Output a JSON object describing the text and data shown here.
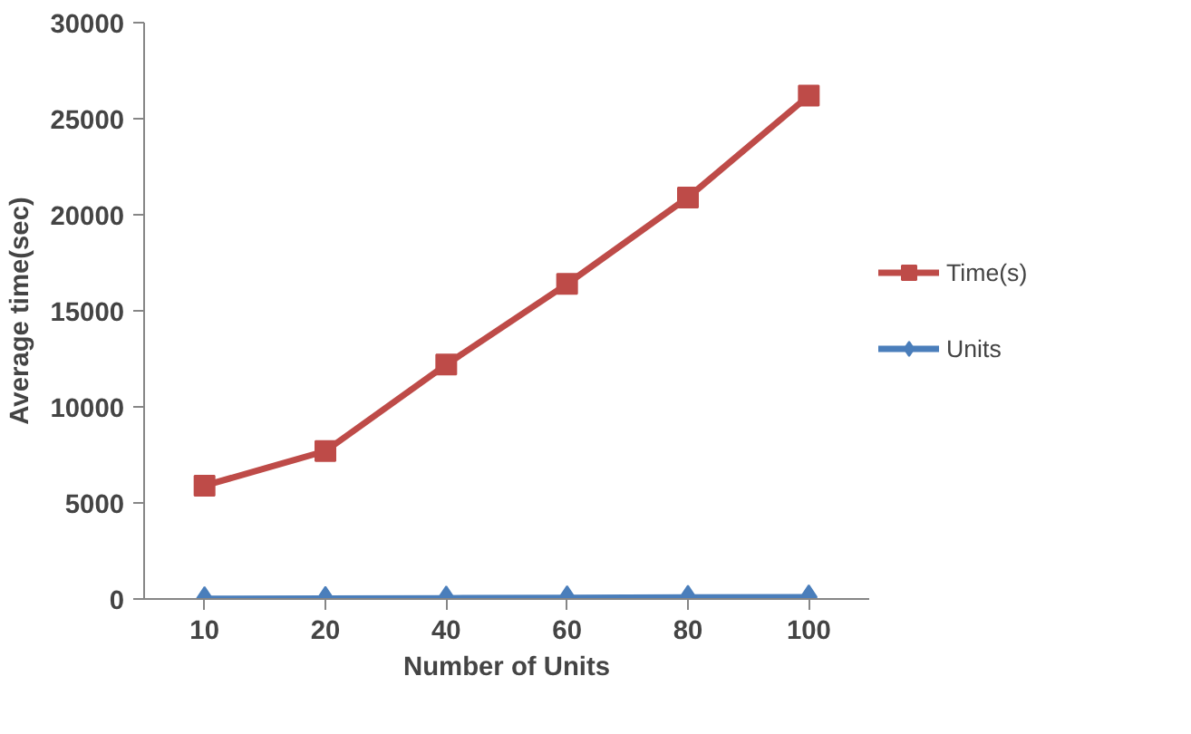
{
  "chart_data": {
    "type": "line",
    "xlabel": "Number of Units",
    "ylabel": "Average time(sec)",
    "categories": [
      "10",
      "20",
      "40",
      "60",
      "80",
      "100"
    ],
    "series": [
      {
        "name": "Time(s)",
        "color": "#be4b48",
        "marker": "square",
        "values": [
          5900,
          7700,
          12200,
          16400,
          20900,
          26200
        ]
      },
      {
        "name": "Units",
        "color": "#4a7ebb",
        "marker": "diamond",
        "values": [
          10,
          20,
          40,
          60,
          80,
          100
        ]
      }
    ],
    "ylim": [
      0,
      30000
    ],
    "yticks": [
      0,
      5000,
      10000,
      15000,
      20000,
      25000,
      30000
    ],
    "grid": false,
    "legend": "right",
    "line_style": "solid"
  }
}
